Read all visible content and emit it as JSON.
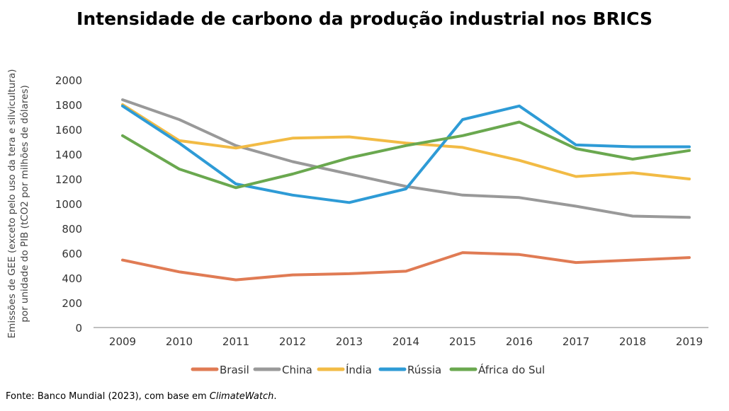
{
  "chart_data": {
    "type": "line",
    "title": "Intensidade de carbono da produção industrial nos BRICS",
    "xlabel": "",
    "ylabel_line1": "Emissões de GEE (exceto pelo uso da tera e silvicultura)",
    "ylabel_line2": "por unidade do PIB  (tCO2 por milhões de dólares)",
    "x": [
      "2009",
      "2010",
      "2011",
      "2012",
      "2013",
      "2014",
      "2015",
      "2016",
      "2017",
      "2018",
      "2019"
    ],
    "ylim": [
      0,
      2000
    ],
    "yticks": [
      "0",
      "200",
      "400",
      "600",
      "800",
      "1000",
      "1200",
      "1400",
      "1600",
      "1800",
      "2000"
    ],
    "grid": false,
    "legend_position": "bottom",
    "series": [
      {
        "name": "Brasil",
        "color": "#e07b54",
        "values": [
          545,
          450,
          385,
          425,
          435,
          455,
          605,
          590,
          525,
          545,
          565
        ]
      },
      {
        "name": "China",
        "color": "#999999",
        "values": [
          1840,
          1680,
          1470,
          1340,
          1240,
          1140,
          1070,
          1050,
          980,
          900,
          890
        ]
      },
      {
        "name": "Índia",
        "color": "#f2bb45",
        "values": [
          1800,
          1510,
          1450,
          1530,
          1540,
          1490,
          1455,
          1350,
          1220,
          1250,
          1200
        ]
      },
      {
        "name": "Rússia",
        "color": "#2e9bd6",
        "values": [
          1790,
          1490,
          1160,
          1070,
          1010,
          1120,
          1680,
          1790,
          1475,
          1460,
          1460
        ]
      },
      {
        "name": "África do Sul",
        "color": "#6aa84f",
        "values": [
          1550,
          1280,
          1130,
          1240,
          1370,
          1470,
          1550,
          1660,
          1445,
          1360,
          1430
        ]
      }
    ]
  },
  "footer": {
    "source_prefix": "Fonte: Banco Mundial (2023), com base em ",
    "source_italic": "ClimateWatch",
    "source_suffix": "."
  }
}
